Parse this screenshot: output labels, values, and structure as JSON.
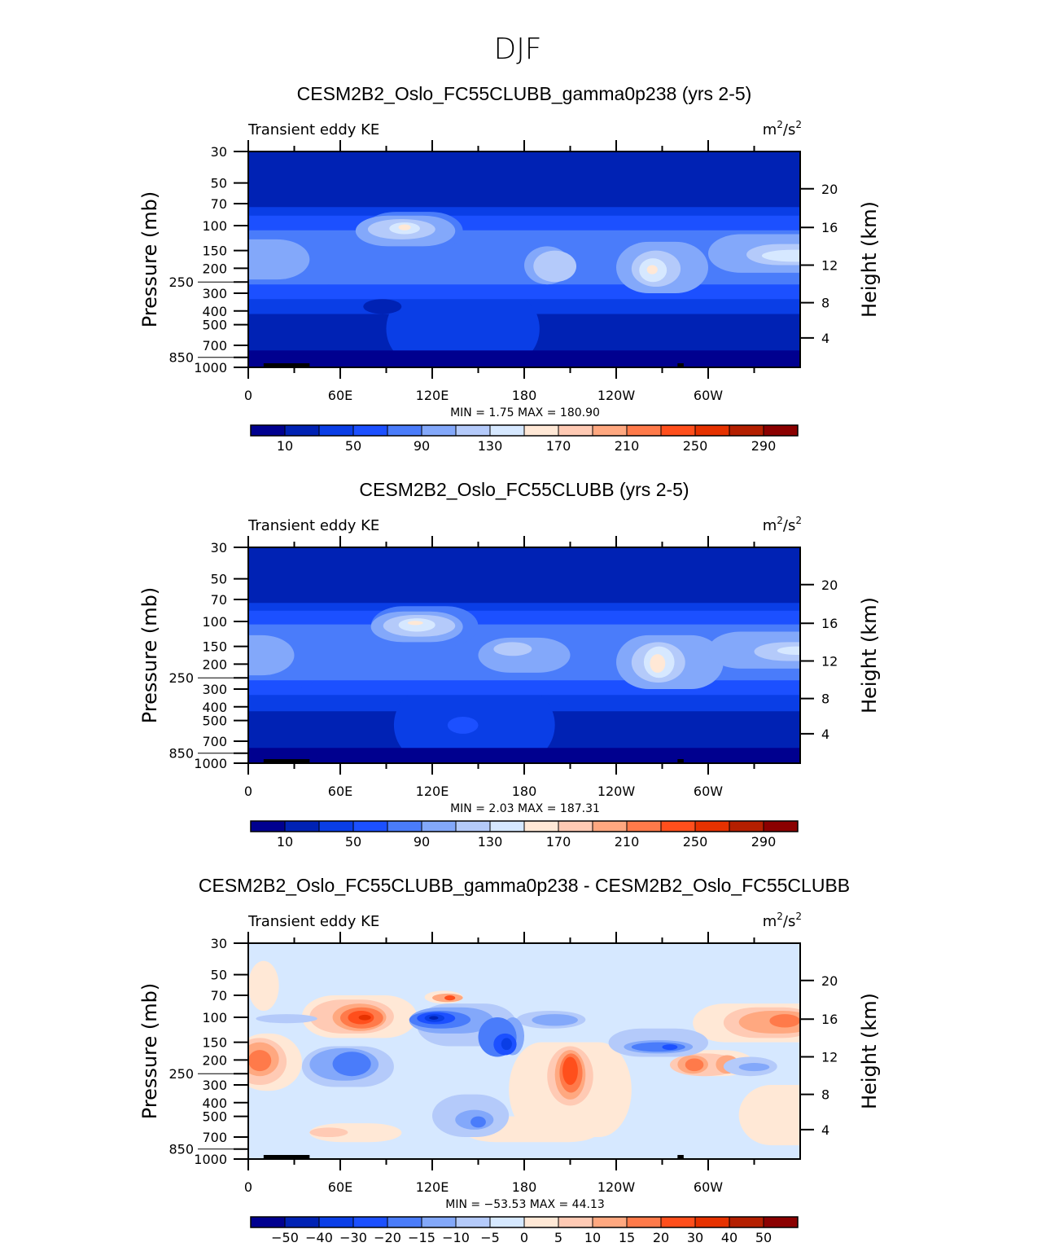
{
  "chart_data": {
    "type": "heatmap",
    "title": "DJF",
    "x_ticks": [
      "0",
      "60E",
      "120E",
      "180",
      "120W",
      "60W"
    ],
    "x_tick_lons": [
      0,
      60,
      120,
      180,
      240,
      300
    ],
    "xlim": [
      0,
      360
    ],
    "y_ticks": [
      30,
      50,
      70,
      100,
      150,
      200,
      250,
      300,
      400,
      500,
      700,
      850,
      1000
    ],
    "ylim_mb": [
      1000,
      30
    ],
    "ylabel": "Pressure  (mb)",
    "y2label": "Height  (km)",
    "y2_ticks": [
      {
        "km": "20",
        "p": 55
      },
      {
        "km": "16",
        "p": 103
      },
      {
        "km": "12",
        "p": 190
      },
      {
        "km": "8",
        "p": 350
      },
      {
        "km": "4",
        "p": 620
      }
    ],
    "palette": [
      "#00008f",
      "#0022b4",
      "#0a3ee6",
      "#1c50ff",
      "#4a7cfa",
      "#83a8fa",
      "#b4cafa",
      "#d6e8ff",
      "#ffe8d6",
      "#ffcab4",
      "#ffa880",
      "#ff7a4a",
      "#ff4f1c",
      "#e63200",
      "#b41f00",
      "#8b0000"
    ],
    "panels": [
      {
        "title": "CESM2B2_Oslo_FC55CLUBB_gamma0p238 (yrs 2-5)",
        "left_label": "Transient eddy KE",
        "units": "m²/s²",
        "units_base": "m",
        "units_mid": "/s",
        "units_sup": "2",
        "stats": "MIN =    1.75   MAX =  180.90",
        "colorbar_labels": [
          "10",
          "50",
          "90",
          "130",
          "170",
          "210",
          "250",
          "290"
        ],
        "colorbar_label_step": 2,
        "background_level": 1,
        "features": [
          [
            2,
            -20,
            380,
            74,
            420
          ],
          [
            2,
            90,
            190,
            300,
            950
          ],
          [
            3,
            -20,
            380,
            85,
            330
          ],
          [
            3,
            0,
            60,
            120,
            290
          ],
          [
            4,
            -20,
            380,
            108,
            260
          ],
          [
            4,
            75,
            140,
            80,
            150
          ],
          [
            5,
            -20,
            40,
            125,
            240
          ],
          [
            5,
            70,
            135,
            85,
            140
          ],
          [
            5,
            180,
            210,
            140,
            260
          ],
          [
            5,
            240,
            300,
            130,
            300
          ],
          [
            5,
            300,
            380,
            115,
            215
          ],
          [
            6,
            78,
            122,
            90,
            125
          ],
          [
            6,
            186,
            214,
            150,
            250
          ],
          [
            6,
            250,
            282,
            150,
            270
          ],
          [
            6,
            325,
            380,
            135,
            190
          ],
          [
            7,
            92,
            112,
            95,
            115
          ],
          [
            7,
            255,
            273,
            170,
            250
          ],
          [
            7,
            335,
            380,
            148,
            180
          ],
          [
            8,
            98,
            106,
            98,
            108
          ],
          [
            8,
            260,
            267,
            190,
            220
          ],
          [
            1,
            75,
            100,
            330,
            420
          ],
          [
            0,
            -20,
            380,
            760,
            1100
          ],
          [
            0,
            20,
            45,
            820,
            1000
          ]
        ],
        "mountains": [
          [
            10,
            40
          ],
          [
            280,
            284
          ]
        ]
      },
      {
        "title": "CESM2B2_Oslo_FC55CLUBB (yrs 2-5)",
        "left_label": "Transient eddy KE",
        "units": "m²/s²",
        "units_base": "m",
        "units_mid": "/s",
        "units_sup": "2",
        "stats": "MIN =    2.03   MAX =  187.31",
        "colorbar_labels": [
          "10",
          "50",
          "90",
          "130",
          "170",
          "210",
          "250",
          "290"
        ],
        "colorbar_label_step": 2,
        "background_level": 1,
        "features": [
          [
            2,
            -20,
            380,
            74,
            430
          ],
          [
            2,
            95,
            200,
            300,
            960
          ],
          [
            3,
            -20,
            380,
            84,
            330
          ],
          [
            3,
            0,
            50,
            120,
            300
          ],
          [
            4,
            -20,
            380,
            105,
            260
          ],
          [
            4,
            80,
            150,
            78,
            150
          ],
          [
            5,
            -20,
            30,
            125,
            240
          ],
          [
            5,
            80,
            140,
            85,
            140
          ],
          [
            5,
            150,
            210,
            130,
            230
          ],
          [
            5,
            240,
            310,
            125,
            300
          ],
          [
            5,
            300,
            380,
            118,
            215
          ],
          [
            6,
            88,
            135,
            90,
            128
          ],
          [
            6,
            160,
            185,
            140,
            175
          ],
          [
            6,
            250,
            285,
            140,
            270
          ],
          [
            6,
            330,
            380,
            140,
            190
          ],
          [
            7,
            98,
            122,
            95,
            118
          ],
          [
            7,
            258,
            278,
            150,
            250
          ],
          [
            7,
            345,
            370,
            150,
            172
          ],
          [
            8,
            104,
            114,
            99,
            106
          ],
          [
            8,
            262,
            272,
            170,
            230
          ],
          [
            3,
            130,
            150,
            470,
            620
          ],
          [
            0,
            -20,
            380,
            780,
            1100
          ],
          [
            0,
            20,
            45,
            820,
            1000
          ]
        ],
        "mountains": [
          [
            10,
            40
          ],
          [
            280,
            284
          ]
        ]
      },
      {
        "title": "CESM2B2_Oslo_FC55CLUBB_gamma0p238 - CESM2B2_Oslo_FC55CLUBB",
        "left_label": "Transient eddy KE",
        "units": "m²/s²",
        "units_base": "m",
        "units_mid": "/s",
        "units_sup": "2",
        "stats": "MIN = −53.53   MAX =   44.13",
        "colorbar_labels": [
          "−50",
          "−40",
          "−30",
          "−20",
          "−15",
          "−10",
          "−5",
          "0",
          "5",
          "10",
          "15",
          "20",
          "30",
          "40",
          "50"
        ],
        "colorbar_label_step": 1,
        "background_level": 7,
        "features": [
          [
            8,
            -10,
            35,
            130,
            330
          ],
          [
            8,
            35,
            110,
            70,
            140
          ],
          [
            8,
            115,
            140,
            65,
            80
          ],
          [
            8,
            170,
            250,
            150,
            700
          ],
          [
            8,
            290,
            380,
            80,
            150
          ],
          [
            8,
            280,
            330,
            170,
            260
          ],
          [
            8,
            40,
            100,
            560,
            760
          ],
          [
            8,
            140,
            230,
            500,
            760
          ],
          [
            8,
            0,
            20,
            40,
            90
          ],
          [
            8,
            320,
            380,
            300,
            800
          ],
          [
            9,
            -10,
            25,
            140,
            300
          ],
          [
            9,
            40,
            95,
            75,
            130
          ],
          [
            9,
            195,
            225,
            160,
            420
          ],
          [
            9,
            275,
            320,
            180,
            260
          ],
          [
            9,
            310,
            370,
            85,
            140
          ],
          [
            9,
            40,
            65,
            600,
            700
          ],
          [
            10,
            -5,
            20,
            150,
            260
          ],
          [
            10,
            55,
            90,
            80,
            125
          ],
          [
            10,
            200,
            220,
            170,
            380
          ],
          [
            10,
            280,
            300,
            185,
            250
          ],
          [
            10,
            305,
            320,
            185,
            250
          ],
          [
            10,
            320,
            370,
            90,
            130
          ],
          [
            10,
            120,
            140,
            68,
            78
          ],
          [
            11,
            0,
            15,
            170,
            240
          ],
          [
            11,
            60,
            88,
            85,
            120
          ],
          [
            11,
            203,
            218,
            180,
            340
          ],
          [
            11,
            285,
            297,
            195,
            240
          ],
          [
            11,
            340,
            360,
            95,
            118
          ],
          [
            12,
            65,
            82,
            90,
            112
          ],
          [
            12,
            205,
            215,
            190,
            300
          ],
          [
            12,
            128,
            135,
            70,
            76
          ],
          [
            13,
            72,
            80,
            96,
            105
          ],
          [
            6,
            5,
            45,
            95,
            110
          ],
          [
            6,
            35,
            95,
            160,
            310
          ],
          [
            6,
            110,
            175,
            80,
            160
          ],
          [
            6,
            175,
            220,
            90,
            120
          ],
          [
            6,
            235,
            300,
            120,
            190
          ],
          [
            6,
            120,
            170,
            350,
            700
          ],
          [
            6,
            310,
            345,
            190,
            260
          ],
          [
            5,
            40,
            85,
            165,
            280
          ],
          [
            5,
            105,
            160,
            85,
            130
          ],
          [
            5,
            165,
            180,
            100,
            185
          ],
          [
            5,
            185,
            215,
            95,
            115
          ],
          [
            5,
            245,
            290,
            145,
            180
          ],
          [
            5,
            135,
            160,
            450,
            620
          ],
          [
            5,
            320,
            340,
            210,
            240
          ],
          [
            4,
            55,
            80,
            175,
            260
          ],
          [
            4,
            105,
            145,
            90,
            120
          ],
          [
            4,
            150,
            175,
            100,
            190
          ],
          [
            4,
            250,
            285,
            150,
            175
          ],
          [
            4,
            145,
            155,
            500,
            600
          ],
          [
            3,
            110,
            135,
            92,
            112
          ],
          [
            3,
            160,
            175,
            130,
            185
          ],
          [
            3,
            270,
            280,
            155,
            170
          ],
          [
            2,
            115,
            128,
            95,
            108
          ],
          [
            2,
            165,
            172,
            140,
            170
          ],
          [
            1,
            118,
            124,
            98,
            104
          ]
        ],
        "mountains": [
          [
            10,
            40
          ],
          [
            280,
            284
          ]
        ]
      }
    ]
  }
}
